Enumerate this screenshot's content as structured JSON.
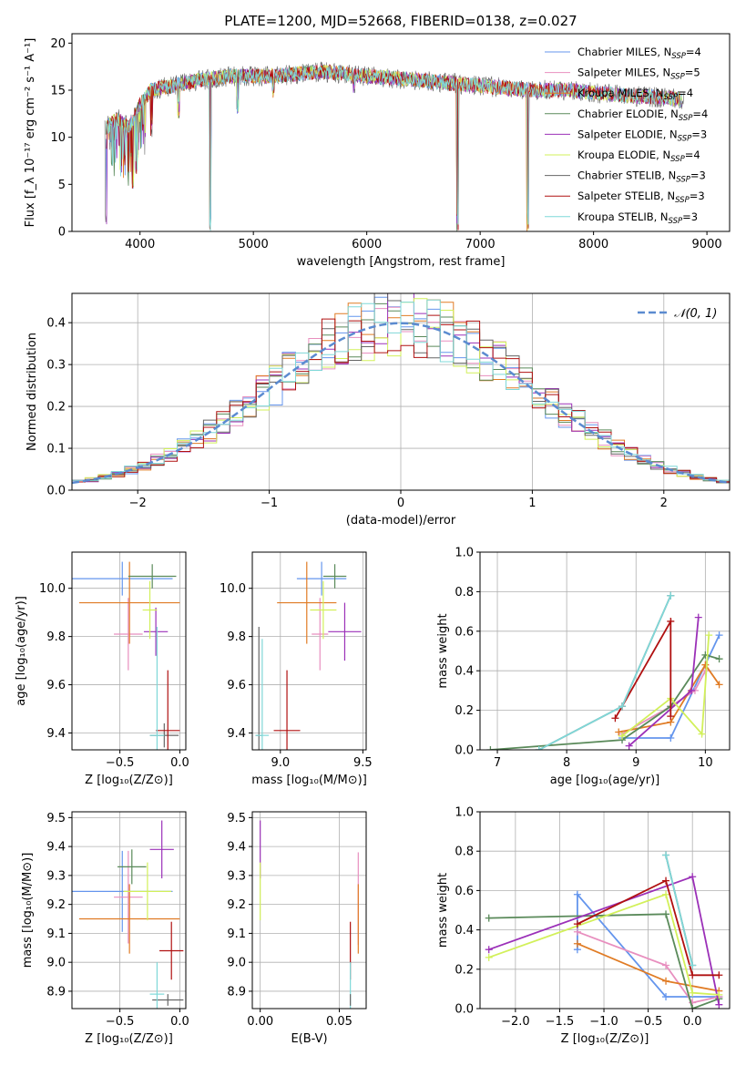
{
  "figure": {
    "title": "PLATE=1200, MJD=52668, FIBERID=0138, z=0.027"
  },
  "series_colors": {
    "chabrier_miles": "#6495ed",
    "salpeter_miles": "#e88fbf",
    "kroupa_miles": "#e07b24",
    "chabrier_elodie": "#5a8a5a",
    "salpeter_elodie": "#9b30b8",
    "kroupa_elodie": "#d2f05a",
    "chabrier_stelib": "#666666",
    "salpeter_stelib": "#b01010",
    "kroupa_stelib": "#7fd8d8"
  },
  "chart_data": [
    {
      "id": "spectrum",
      "type": "line",
      "xlabel": "wavelength [Angstrom, rest frame]",
      "ylabel": "Flux [f_λ 10⁻¹⁷ erg cm⁻² s⁻¹ A⁻¹]",
      "xlim": [
        3400,
        9200
      ],
      "ylim": [
        0,
        21
      ],
      "xticks": [
        "4000",
        "5000",
        "6000",
        "7000",
        "8000",
        "9000"
      ],
      "yticks": [
        "0",
        "5",
        "10",
        "15",
        "20"
      ],
      "legend_position": "upper-right",
      "legend": [
        {
          "text": "Chabrier MILES, N",
          "sub": "SSP",
          "suffix": "=4",
          "color": "#6495ed"
        },
        {
          "text": "Salpeter MILES, N",
          "sub": "SSP",
          "suffix": "=5",
          "color": "#e88fbf"
        },
        {
          "text": "Kroupa MILES, N",
          "sub": "SSP",
          "suffix": "=4",
          "color": "#e07b24"
        },
        {
          "text": "Chabrier ELODIE, N",
          "sub": "SSP",
          "suffix": "=4",
          "color": "#5a8a5a"
        },
        {
          "text": "Salpeter ELODIE, N",
          "sub": "SSP",
          "suffix": "=3",
          "color": "#9b30b8"
        },
        {
          "text": "Kroupa ELODIE, N",
          "sub": "SSP",
          "suffix": "=4",
          "color": "#d2f05a"
        },
        {
          "text": "Chabrier STELIB, N",
          "sub": "SSP",
          "suffix": "=3",
          "color": "#666666"
        },
        {
          "text": "Salpeter STELIB, N",
          "sub": "SSP",
          "suffix": "=3",
          "color": "#b01010"
        },
        {
          "text": "Kroupa STELIB, N",
          "sub": "SSP",
          "suffix": "=3",
          "color": "#7fd8d8"
        }
      ],
      "data_continuum": [
        [
          3700,
          11
        ],
        [
          3800,
          12
        ],
        [
          3900,
          11
        ],
        [
          3950,
          12
        ],
        [
          4000,
          13.5
        ],
        [
          4100,
          15
        ],
        [
          4300,
          15.5
        ],
        [
          4500,
          16
        ],
        [
          4800,
          16.5
        ],
        [
          5200,
          16.5
        ],
        [
          5600,
          17
        ],
        [
          6000,
          16.5
        ],
        [
          6500,
          16
        ],
        [
          7000,
          15.5
        ],
        [
          7400,
          15
        ],
        [
          7800,
          15
        ],
        [
          8200,
          14.5
        ],
        [
          8600,
          14.2
        ],
        [
          8800,
          14
        ]
      ],
      "data_minima": [
        [
          3700,
          0.5
        ],
        [
          3935,
          4.5
        ],
        [
          3968,
          6
        ],
        [
          4102,
          10
        ],
        [
          4340,
          12
        ],
        [
          4620,
          0
        ],
        [
          4861,
          12.5
        ],
        [
          5175,
          14
        ],
        [
          5890,
          14.5
        ],
        [
          6563,
          15
        ],
        [
          6800,
          0
        ],
        [
          7420,
          0
        ]
      ]
    },
    {
      "id": "residuals",
      "type": "histogram",
      "xlabel": "(data-model)/error",
      "ylabel": "Normed distribution",
      "xlim": [
        -2.5,
        2.5
      ],
      "ylim": [
        0,
        0.47
      ],
      "xticks": [
        "−2",
        "−1",
        "0",
        "1",
        "2"
      ],
      "yticks": [
        "0.0",
        "0.1",
        "0.2",
        "0.3",
        "0.4"
      ],
      "legend": [
        {
          "text": "𝒩(0, 1)",
          "color": "#5b8bd0"
        }
      ],
      "gaussian": {
        "mean": 0,
        "sigma": 1
      }
    },
    {
      "id": "age_vs_Z",
      "type": "errorbar",
      "xlabel": "Z [log₁₀(Z/Z⊙)]",
      "ylabel": "age  [log₁₀(age/yr)]",
      "xlim": [
        -0.9,
        0.05
      ],
      "ylim": [
        9.33,
        10.15
      ],
      "xticks": [
        "−0.5",
        "0.0"
      ],
      "yticks": [
        "9.4",
        "9.6",
        "9.8",
        "10.0"
      ],
      "points": [
        {
          "x": -0.48,
          "y": 10.04,
          "xerr": 0.42,
          "yerr": 0.07,
          "color": "#6495ed"
        },
        {
          "x": -0.43,
          "y": 9.81,
          "xerr": 0.12,
          "yerr": 0.15,
          "color": "#e88fbf"
        },
        {
          "x": -0.42,
          "y": 9.94,
          "xerr": 0.42,
          "yerr": 0.17,
          "color": "#e07b24"
        },
        {
          "x": -0.23,
          "y": 10.05,
          "xerr": 0.2,
          "yerr": 0.05,
          "color": "#5a8a5a"
        },
        {
          "x": -0.2,
          "y": 9.82,
          "xerr": 0.1,
          "yerr": 0.1,
          "color": "#9b30b8"
        },
        {
          "x": -0.25,
          "y": 9.91,
          "xerr": 0.06,
          "yerr": 0.12,
          "color": "#d2f05a"
        },
        {
          "x": -0.13,
          "y": 9.39,
          "xerr": 0.12,
          "yerr": 0.05,
          "color": "#666666"
        },
        {
          "x": -0.1,
          "y": 9.41,
          "xerr": 0.1,
          "yerr": 0.25,
          "color": "#b01010"
        },
        {
          "x": -0.19,
          "y": 9.39,
          "xerr": 0.06,
          "yerr": 0.45,
          "color": "#7fd8d8"
        }
      ]
    },
    {
      "id": "age_vs_mass",
      "type": "errorbar",
      "xlabel": "mass [log₁₀(M/M⊙)]",
      "ylabel": "",
      "xlim": [
        8.83,
        9.52
      ],
      "ylim": [
        9.33,
        10.15
      ],
      "xticks": [
        "9.0",
        "9.5"
      ],
      "yticks": [
        "9.4",
        "9.6",
        "9.8",
        "10.0"
      ],
      "points": [
        {
          "x": 9.25,
          "y": 10.04,
          "xerr": 0.15,
          "yerr": 0.07,
          "color": "#6495ed"
        },
        {
          "x": 9.24,
          "y": 9.81,
          "xerr": 0.05,
          "yerr": 0.15,
          "color": "#e88fbf"
        },
        {
          "x": 9.16,
          "y": 9.94,
          "xerr": 0.18,
          "yerr": 0.17,
          "color": "#e07b24"
        },
        {
          "x": 9.33,
          "y": 10.05,
          "xerr": 0.07,
          "yerr": 0.05,
          "color": "#5a8a5a"
        },
        {
          "x": 9.39,
          "y": 9.82,
          "xerr": 0.1,
          "yerr": 0.12,
          "color": "#9b30b8"
        },
        {
          "x": 9.26,
          "y": 9.91,
          "xerr": 0.08,
          "yerr": 0.12,
          "color": "#d2f05a"
        },
        {
          "x": 8.87,
          "y": 9.39,
          "xerr": 0.02,
          "yerr": 0.45,
          "color": "#666666"
        },
        {
          "x": 9.04,
          "y": 9.41,
          "xerr": 0.08,
          "yerr": 0.25,
          "color": "#b01010"
        },
        {
          "x": 8.89,
          "y": 9.39,
          "xerr": 0.04,
          "yerr": 0.4,
          "color": "#7fd8d8"
        }
      ]
    },
    {
      "id": "mass_weight_vs_age",
      "type": "line",
      "xlabel": "age  [log₁₀(age/yr)]",
      "ylabel": "mass weight",
      "xlim": [
        6.75,
        10.35
      ],
      "ylim": [
        0,
        1.0
      ],
      "xticks": [
        "7",
        "8",
        "9",
        "10"
      ],
      "yticks": [
        "0.0",
        "0.2",
        "0.4",
        "0.6",
        "0.8",
        "1.0"
      ],
      "series": [
        {
          "color": "#6495ed",
          "x": [
            8.8,
            9.5,
            10.2
          ],
          "y": [
            0.06,
            0.06,
            0.58
          ]
        },
        {
          "color": "#e88fbf",
          "x": [
            8.8,
            9.5,
            9.85,
            10.0
          ],
          "y": [
            0.08,
            0.22,
            0.3,
            0.4
          ]
        },
        {
          "color": "#e07b24",
          "x": [
            8.75,
            9.5,
            10.0,
            10.2
          ],
          "y": [
            0.09,
            0.14,
            0.43,
            0.33
          ]
        },
        {
          "color": "#5a8a5a",
          "x": [
            6.9,
            8.8,
            9.5,
            10.0,
            10.2
          ],
          "y": [
            0.0,
            0.05,
            0.22,
            0.48,
            0.46
          ]
        },
        {
          "color": "#9b30b8",
          "x": [
            8.9,
            9.8,
            9.9
          ],
          "y": [
            0.02,
            0.3,
            0.67
          ]
        },
        {
          "color": "#d2f05a",
          "x": [
            8.8,
            9.5,
            9.95,
            10.05
          ],
          "y": [
            0.07,
            0.26,
            0.08,
            0.58
          ]
        },
        {
          "color": "#666666",
          "x": [
            7.6,
            8.8,
            9.5
          ],
          "y": [
            0.0,
            0.22,
            0.78
          ]
        },
        {
          "color": "#b01010",
          "x": [
            8.7,
            8.8,
            9.5,
            9.5
          ],
          "y": [
            0.16,
            0.22,
            0.65,
            0.17
          ]
        },
        {
          "color": "#7fd8d8",
          "x": [
            7.6,
            8.8,
            9.5
          ],
          "y": [
            0.0,
            0.22,
            0.78
          ]
        }
      ]
    },
    {
      "id": "mass_vs_Z",
      "type": "errorbar",
      "xlabel": "Z [log₁₀(Z/Z⊙)]",
      "ylabel": "mass [log₁₀(M/M⊙)]",
      "xlim": [
        -0.9,
        0.05
      ],
      "ylim": [
        8.84,
        9.52
      ],
      "xticks": [
        "−0.5",
        "0.0"
      ],
      "yticks": [
        "8.9",
        "9.0",
        "9.1",
        "9.2",
        "9.3",
        "9.4",
        "9.5"
      ],
      "points": [
        {
          "x": -0.48,
          "y": 9.245,
          "xerr": 0.42,
          "yerr": 0.14,
          "color": "#6495ed"
        },
        {
          "x": -0.43,
          "y": 9.225,
          "xerr": 0.12,
          "yerr": 0.16,
          "color": "#e88fbf"
        },
        {
          "x": -0.42,
          "y": 9.15,
          "xerr": 0.42,
          "yerr": 0.12,
          "color": "#e07b24"
        },
        {
          "x": -0.4,
          "y": 9.33,
          "xerr": 0.12,
          "yerr": 0.06,
          "color": "#5a8a5a"
        },
        {
          "x": -0.15,
          "y": 9.39,
          "xerr": 0.1,
          "yerr": 0.1,
          "color": "#9b30b8"
        },
        {
          "x": -0.27,
          "y": 9.245,
          "xerr": 0.2,
          "yerr": 0.1,
          "color": "#d2f05a"
        },
        {
          "x": -0.1,
          "y": 8.87,
          "xerr": 0.13,
          "yerr": 0.02,
          "color": "#666666"
        },
        {
          "x": -0.07,
          "y": 9.04,
          "xerr": 0.1,
          "yerr": 0.1,
          "color": "#b01010"
        },
        {
          "x": -0.19,
          "y": 8.89,
          "xerr": 0.06,
          "yerr": 0.11,
          "color": "#7fd8d8"
        }
      ]
    },
    {
      "id": "mass_vs_ebv",
      "type": "errorbar",
      "xlabel": "E(B-V)",
      "ylabel": "",
      "xlim": [
        -0.005,
        0.067
      ],
      "ylim": [
        8.84,
        9.52
      ],
      "xticks": [
        "0.00",
        "0.05"
      ],
      "yticks": [
        "8.9",
        "9.0",
        "9.1",
        "9.2",
        "9.3",
        "9.4",
        "9.5"
      ],
      "points": [
        {
          "x": 0.0,
          "y": 9.39,
          "xerr": 0,
          "yerr": 0.1,
          "color": "#9b30b8"
        },
        {
          "x": 0.0,
          "y": 9.245,
          "xerr": 0,
          "yerr": 0.1,
          "color": "#d2f05a"
        },
        {
          "x": 0.062,
          "y": 9.22,
          "xerr": 0,
          "yerr": 0.16,
          "color": "#e88fbf"
        },
        {
          "x": 0.062,
          "y": 9.15,
          "xerr": 0,
          "yerr": 0.12,
          "color": "#e07b24"
        },
        {
          "x": 0.057,
          "y": 9.04,
          "xerr": 0,
          "yerr": 0.1,
          "color": "#b01010"
        },
        {
          "x": 0.057,
          "y": 8.89,
          "xerr": 0,
          "yerr": 0.11,
          "color": "#7fd8d8"
        },
        {
          "x": 0.057,
          "y": 8.87,
          "xerr": 0,
          "yerr": 0.02,
          "color": "#666666"
        }
      ]
    },
    {
      "id": "mass_weight_vs_Z",
      "type": "line",
      "xlabel": "Z [log₁₀(Z/Z⊙)]",
      "ylabel": "mass weight",
      "xlim": [
        -2.4,
        0.42
      ],
      "ylim": [
        0,
        1.0
      ],
      "xticks": [
        "−2.0",
        "−1.5",
        "−1.0",
        "−0.5",
        "0.0"
      ],
      "yticks": [
        "0.0",
        "0.2",
        "0.4",
        "0.6",
        "0.8",
        "1.0"
      ],
      "series": [
        {
          "color": "#6495ed",
          "x": [
            -1.3,
            -1.3,
            -0.3,
            0.3
          ],
          "y": [
            0.3,
            0.58,
            0.06,
            0.06
          ]
        },
        {
          "color": "#e88fbf",
          "x": [
            -1.3,
            -0.3,
            0.0,
            0.3
          ],
          "y": [
            0.39,
            0.22,
            0.03,
            0.06
          ]
        },
        {
          "color": "#e07b24",
          "x": [
            -1.3,
            -0.3,
            0.3
          ],
          "y": [
            0.33,
            0.14,
            0.09
          ]
        },
        {
          "color": "#5a8a5a",
          "x": [
            -2.3,
            -0.3,
            0.0,
            0.3
          ],
          "y": [
            0.46,
            0.48,
            0.0,
            0.05
          ]
        },
        {
          "color": "#9b30b8",
          "x": [
            -2.3,
            0.0,
            0.3
          ],
          "y": [
            0.3,
            0.67,
            0.02
          ]
        },
        {
          "color": "#d2f05a",
          "x": [
            -2.3,
            -0.3,
            0.0,
            0.3
          ],
          "y": [
            0.26,
            0.58,
            0.08,
            0.07
          ]
        },
        {
          "color": "#666666",
          "x": [
            -0.3,
            0.0
          ],
          "y": [
            0.78,
            0.22
          ]
        },
        {
          "color": "#b01010",
          "x": [
            -1.3,
            -0.3,
            0.0,
            0.3
          ],
          "y": [
            0.43,
            0.65,
            0.17,
            0.17
          ]
        },
        {
          "color": "#7fd8d8",
          "x": [
            -0.3,
            0.0
          ],
          "y": [
            0.78,
            0.22
          ]
        }
      ]
    }
  ]
}
